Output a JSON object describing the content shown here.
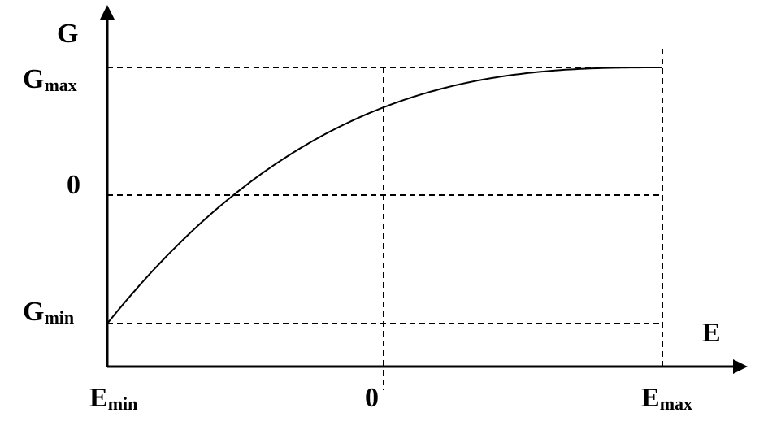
{
  "labels": {
    "y_axis": "G",
    "x_axis": "E",
    "g_max_main": "G",
    "g_max_sub": "max",
    "g_zero": "0",
    "g_min_main": "G",
    "g_min_sub": "min",
    "e_min_main": "E",
    "e_min_sub": "min",
    "e_zero": "0",
    "e_max_main": "E",
    "e_max_sub": "max"
  },
  "colors": {
    "ink": "#000000",
    "background": "#ffffff"
  }
}
